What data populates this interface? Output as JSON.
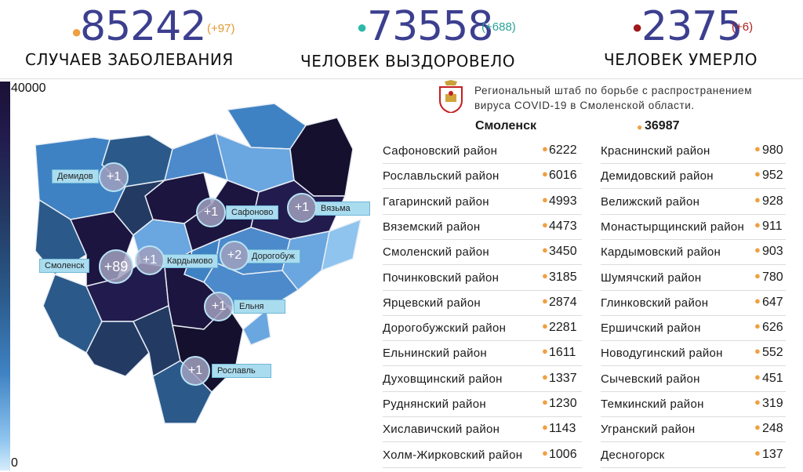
{
  "stats": [
    {
      "value": "85242",
      "delta": "(+97)",
      "caption": "Случаев заболевания",
      "dot_color": "#f0a040",
      "delta_color": "#e09a30"
    },
    {
      "value": "73558",
      "delta": "(+688)",
      "caption": "Человек выздоровело",
      "dot_color": "#2bb8a8",
      "delta_color": "#2aa39a"
    },
    {
      "value": "2375",
      "delta": "(+6)",
      "caption": "Человек умерло",
      "dot_color": "#a01818",
      "delta_color": "#b02020"
    }
  ],
  "scale": {
    "max": "40000",
    "min": "0"
  },
  "map": {
    "labels": [
      {
        "name": "Демидов",
        "badge": "+1"
      },
      {
        "name": "Сафоново",
        "badge": "+1"
      },
      {
        "name": "Вязьма",
        "badge": "+1"
      },
      {
        "name": "Смоленск",
        "badge": "+89"
      },
      {
        "name": "Кардымово",
        "badge": "+1"
      },
      {
        "name": "Дорогобуж",
        "badge": "+2"
      },
      {
        "name": "Ельня",
        "badge": "+1"
      },
      {
        "name": "Рославль",
        "badge": "+1"
      }
    ]
  },
  "hq": {
    "line1": "Региональный штаб по борьбе с распространением",
    "line2": "вируса COVID-19 в Смоленской области."
  },
  "city": {
    "name": "Смоленск",
    "value": "36987"
  },
  "districts_left": [
    {
      "name": "Сафоновский район",
      "value": "6222"
    },
    {
      "name": "Рославльский район",
      "value": "6016"
    },
    {
      "name": "Гагаринский район",
      "value": "4993"
    },
    {
      "name": "Вяземский район",
      "value": "4473"
    },
    {
      "name": "Смоленский район",
      "value": "3450"
    },
    {
      "name": "Починковский район",
      "value": "3185"
    },
    {
      "name": "Ярцевский район",
      "value": "2874"
    },
    {
      "name": "Дорогобужский район",
      "value": "2281"
    },
    {
      "name": "Ельнинский район",
      "value": "1611"
    },
    {
      "name": "Духовщинский район",
      "value": "1337"
    },
    {
      "name": "Руднянский район",
      "value": "1230"
    },
    {
      "name": "Хиславичский район",
      "value": "1143"
    },
    {
      "name": "Холм-Жирковский район",
      "value": "1006"
    }
  ],
  "districts_right": [
    {
      "name": "Краснинский район",
      "value": "980"
    },
    {
      "name": "Демидовский район",
      "value": "952"
    },
    {
      "name": "Велижский район",
      "value": "928"
    },
    {
      "name": "Монастырщинский район",
      "value": "911"
    },
    {
      "name": "Кардымовский район",
      "value": "903"
    },
    {
      "name": "Шумячский район",
      "value": "780"
    },
    {
      "name": "Глинковский район",
      "value": "647"
    },
    {
      "name": "Ершичский район",
      "value": "626"
    },
    {
      "name": "Новодугинский район",
      "value": "552"
    },
    {
      "name": "Сычевский район",
      "value": "451"
    },
    {
      "name": "Темкинский район",
      "value": "319"
    },
    {
      "name": "Угранский район",
      "value": "248"
    },
    {
      "name": "Десногорск",
      "value": "137"
    }
  ]
}
